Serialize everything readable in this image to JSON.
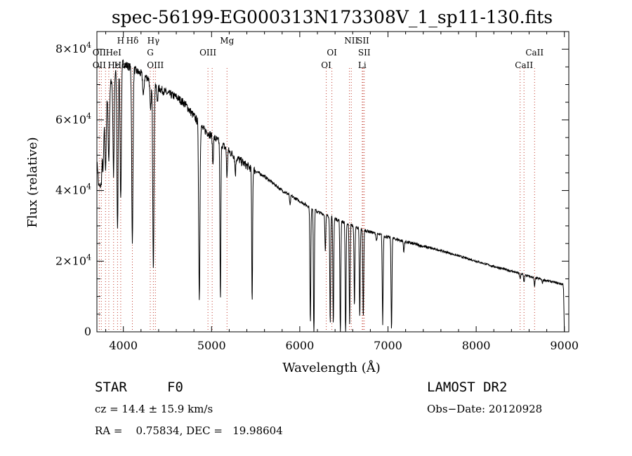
{
  "chart_data": {
    "type": "line",
    "title": "spec-56199-EG000313N173308V_1_sp11-130.fits",
    "xlabel": "Wavelength (Å)",
    "ylabel": "Flux (relative)",
    "xlim": [
      3700,
      9050
    ],
    "ylim": [
      0,
      85000
    ],
    "xticks": [
      4000,
      5000,
      6000,
      7000,
      8000,
      9000
    ],
    "xtick_labels": [
      "4000",
      "5000",
      "6000",
      "7000",
      "8000",
      "9000"
    ],
    "yticks": [
      0,
      20000,
      40000,
      60000,
      80000
    ],
    "ytick_labels": [
      {
        "mant": "0",
        "exp": ""
      },
      {
        "mant": "2×10",
        "exp": "4"
      },
      {
        "mant": "4×10",
        "exp": "4"
      },
      {
        "mant": "6×10",
        "exp": "4"
      },
      {
        "mant": "8×10",
        "exp": "4"
      }
    ],
    "grid": false,
    "series": [
      {
        "continuum": [
          [
            3700,
            47000
          ],
          [
            3760,
            57000
          ],
          [
            3800,
            64000
          ],
          [
            3850,
            70000
          ],
          [
            3900,
            73000
          ],
          [
            3950,
            75500
          ],
          [
            4000,
            76000
          ],
          [
            4100,
            74500
          ],
          [
            4200,
            73000
          ],
          [
            4300,
            71500
          ],
          [
            4400,
            69000
          ],
          [
            4500,
            67500
          ],
          [
            4600,
            66500
          ],
          [
            4700,
            64500
          ],
          [
            4800,
            61000
          ],
          [
            4900,
            57500
          ],
          [
            5000,
            55500
          ],
          [
            5100,
            53500
          ],
          [
            5200,
            51000
          ],
          [
            5300,
            49000
          ],
          [
            5400,
            47000
          ],
          [
            5500,
            45500
          ],
          [
            5600,
            44000
          ],
          [
            5700,
            42000
          ],
          [
            5800,
            40000
          ],
          [
            5900,
            38500
          ],
          [
            6000,
            37000
          ],
          [
            6100,
            35500
          ],
          [
            6200,
            34000
          ],
          [
            6300,
            33000
          ],
          [
            6400,
            32000
          ],
          [
            6500,
            31000
          ],
          [
            6600,
            30000
          ],
          [
            6700,
            29000
          ],
          [
            6800,
            28300
          ],
          [
            6900,
            27500
          ],
          [
            7000,
            26800
          ],
          [
            7200,
            25500
          ],
          [
            7400,
            24200
          ],
          [
            7600,
            23000
          ],
          [
            7800,
            21500
          ],
          [
            8000,
            20000
          ],
          [
            8200,
            18500
          ],
          [
            8400,
            17200
          ],
          [
            8600,
            15700
          ],
          [
            8800,
            14500
          ],
          [
            8980,
            13500
          ]
        ],
        "absorption_lines": [
          [
            3720,
            8000
          ],
          [
            3735,
            10000
          ],
          [
            3750,
            12000
          ],
          [
            3770,
            13000
          ],
          [
            3798,
            18000
          ],
          [
            3835,
            20000
          ],
          [
            3889,
            28000
          ],
          [
            3934,
            45000
          ],
          [
            3970,
            38000
          ],
          [
            4102,
            50000
          ],
          [
            4227,
            6000
          ],
          [
            4308,
            9000
          ],
          [
            4340,
            52000
          ],
          [
            4384,
            4000
          ],
          [
            4861,
            50000
          ],
          [
            5015,
            8000
          ],
          [
            5100,
            45000
          ],
          [
            5175,
            8000
          ],
          [
            5270,
            5000
          ],
          [
            5460,
            38000
          ],
          [
            5890,
            3000
          ],
          [
            6120,
            33000
          ],
          [
            6160,
            37000
          ],
          [
            6290,
            10000
          ],
          [
            6345,
            30000
          ],
          [
            6380,
            30000
          ],
          [
            6460,
            33000
          ],
          [
            6520,
            33000
          ],
          [
            6565,
            28000
          ],
          [
            6620,
            22000
          ],
          [
            6680,
            25000
          ],
          [
            6720,
            25000
          ],
          [
            6870,
            2000
          ],
          [
            6940,
            25000
          ],
          [
            7040,
            26000
          ],
          [
            7180,
            3000
          ],
          [
            8498,
            1500
          ],
          [
            8542,
            2000
          ],
          [
            8662,
            2500
          ],
          [
            8750,
            1000
          ]
        ],
        "end_point": [
          9000,
          0
        ]
      }
    ],
    "annotations": [
      {
        "label": "Hδ",
        "x": 4102,
        "row": 1
      },
      {
        "label": "H",
        "x": 3970,
        "row": 1
      },
      {
        "label": "Hγ",
        "x": 4340,
        "row": 1
      },
      {
        "label": "Mg",
        "x": 5175,
        "row": 1
      },
      {
        "label": "NII",
        "x": 6584,
        "row": 1
      },
      {
        "label": "SII",
        "x": 6717,
        "row": 1
      },
      {
        "label": "OII",
        "x": 3727,
        "row": 2
      },
      {
        "label": "HeI",
        "x": 3889,
        "row": 2
      },
      {
        "label": "G",
        "x": 4305,
        "row": 2
      },
      {
        "label": "OIII",
        "x": 4959,
        "row": 2
      },
      {
        "label": "OI",
        "x": 6364,
        "row": 2
      },
      {
        "label": "SII",
        "x": 6731,
        "row": 2
      },
      {
        "label": "CaII",
        "x": 8662,
        "row": 2
      },
      {
        "label": "OII",
        "x": 3727,
        "row": 3
      },
      {
        "label": "Hε",
        "x": 3889,
        "row": 3
      },
      {
        "label": "Hα",
        "x": 3970,
        "row": 3
      },
      {
        "label": "OIII",
        "x": 4363,
        "row": 3
      },
      {
        "label": "OI",
        "x": 6300,
        "row": 3
      },
      {
        "label": "Li",
        "x": 6708,
        "row": 3
      },
      {
        "label": "CaII",
        "x": 8542,
        "row": 3
      }
    ],
    "marker_lines": [
      3727,
      3750,
      3798,
      3835,
      3889,
      3934,
      3970,
      4102,
      4305,
      4340,
      4363,
      4959,
      5007,
      5175,
      6300,
      6364,
      6563,
      6584,
      6708,
      6717,
      6731,
      8498,
      8542,
      8662
    ]
  },
  "info": {
    "object_class": "STAR",
    "subclass": "F0",
    "survey": "LAMOST DR2",
    "cz": "cz = 14.4 ± 15.9 km/s",
    "obs_date": "Obs−Date: 20120928",
    "radec": "RA =    0.75834, DEC =   19.98604"
  }
}
